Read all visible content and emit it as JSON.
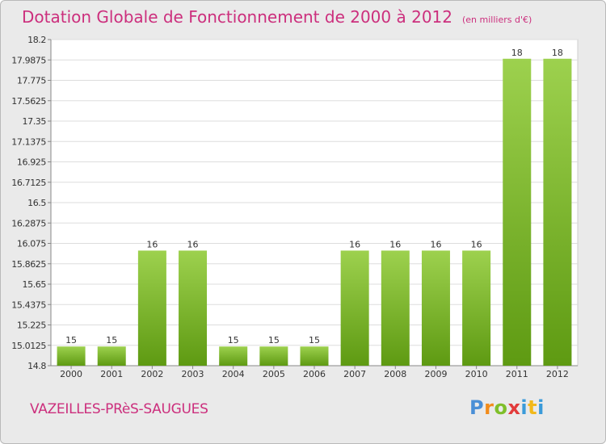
{
  "header": {
    "title": "Dotation Globale de Fonctionnement de 2000 à 2012",
    "units": "(en milliers d'€)"
  },
  "footer": {
    "commune": "VAZEILLES-PRèS-SAUGUES",
    "logo_letters": [
      "P",
      "r",
      "o",
      "x",
      "i",
      "t",
      "i"
    ]
  },
  "colors": {
    "title": "#cc2f7d",
    "bar_top": "#9dd14e",
    "bar_bottom": "#5e9a12",
    "plot_background": "#ffffff",
    "frame_background": "#eaeaea"
  },
  "chart_data": {
    "type": "bar",
    "title": "Dotation Globale de Fonctionnement de 2000 à 2012",
    "subtitle": "(en milliers d'€)",
    "xlabel": "",
    "ylabel": "",
    "categories": [
      "2000",
      "2001",
      "2002",
      "2003",
      "2004",
      "2005",
      "2006",
      "2007",
      "2008",
      "2009",
      "2010",
      "2011",
      "2012"
    ],
    "values": [
      15,
      15,
      16,
      16,
      15,
      15,
      15,
      16,
      16,
      16,
      16,
      18,
      18
    ],
    "data_labels": [
      "15",
      "15",
      "16",
      "16",
      "15",
      "15",
      "15",
      "16",
      "16",
      "16",
      "16",
      "18",
      "18"
    ],
    "ylim": [
      14.8,
      18.2
    ],
    "yticks": [
      14.8,
      15.0125,
      15.225,
      15.4375,
      15.65,
      15.8625,
      16.075,
      16.2875,
      16.5,
      16.7125,
      16.925,
      17.1375,
      17.35,
      17.5625,
      17.775,
      17.9875,
      18.2
    ],
    "ytick_labels": [
      "14.8",
      "15.0125",
      "15.225",
      "15.4375",
      "15.65",
      "15.8625",
      "16.075",
      "16.2875",
      "16.5",
      "16.7125",
      "16.925",
      "17.1375",
      "17.35",
      "17.5625",
      "17.775",
      "17.9875",
      "18.2"
    ],
    "grid": true,
    "legend": "none"
  }
}
